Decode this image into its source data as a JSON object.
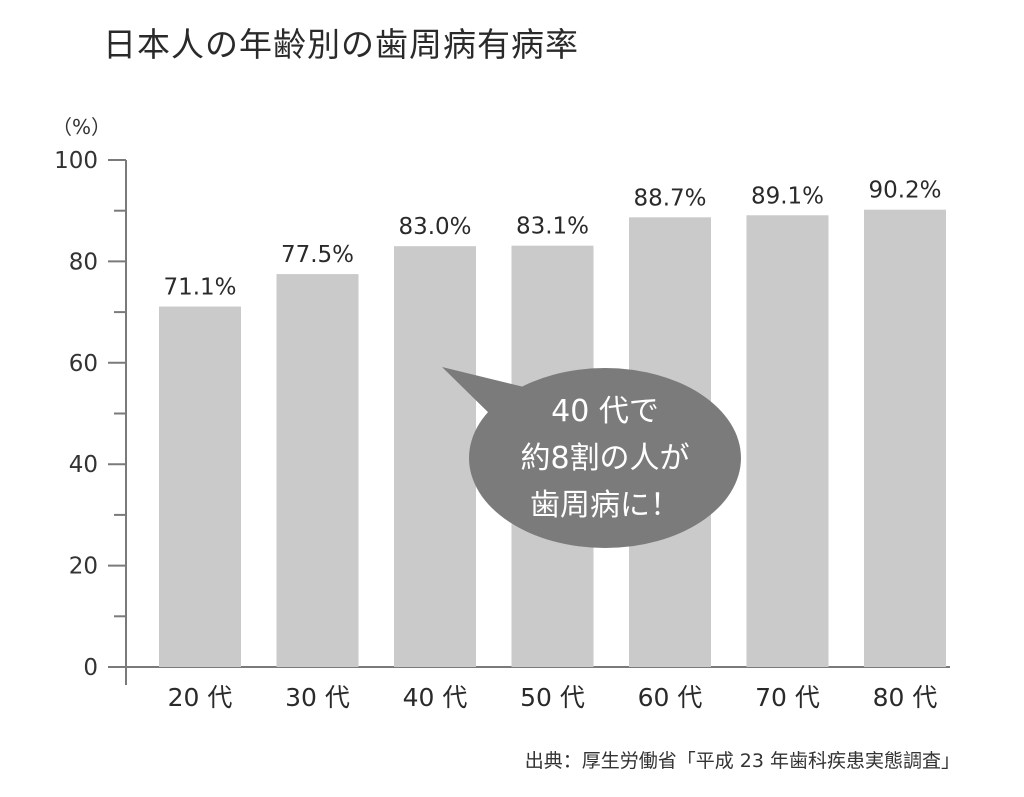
{
  "page": {
    "title": "日本人の年齢別の歯周病有病率",
    "source": "出典：厚生労働省「平成 23 年歯科疾患実態調査」"
  },
  "callout": {
    "line1": "40 代で",
    "line2": "約8割の人が",
    "line3": "歯周病に！"
  },
  "chart_data": {
    "type": "bar",
    "title": "日本人の年齢別の歯周病有病率",
    "ylabel": "（%）",
    "xlabel": "",
    "categories": [
      "20 代",
      "30 代",
      "40 代",
      "50 代",
      "60 代",
      "70 代",
      "80 代"
    ],
    "values": [
      71.1,
      77.5,
      83.0,
      83.1,
      88.7,
      89.1,
      90.2
    ],
    "data_labels": [
      "71.1%",
      "77.5%",
      "83.0%",
      "83.1%",
      "88.7%",
      "89.1%",
      "90.2%"
    ],
    "ylim": [
      0,
      100
    ],
    "yticks": [
      0,
      20,
      40,
      60,
      80,
      100
    ],
    "grid": false,
    "legend": "none",
    "colors": {
      "bar": "#cacacb",
      "axis": "#7a7a7a",
      "callout": "#7b7b7b",
      "callout_text": "#ffffff"
    }
  }
}
